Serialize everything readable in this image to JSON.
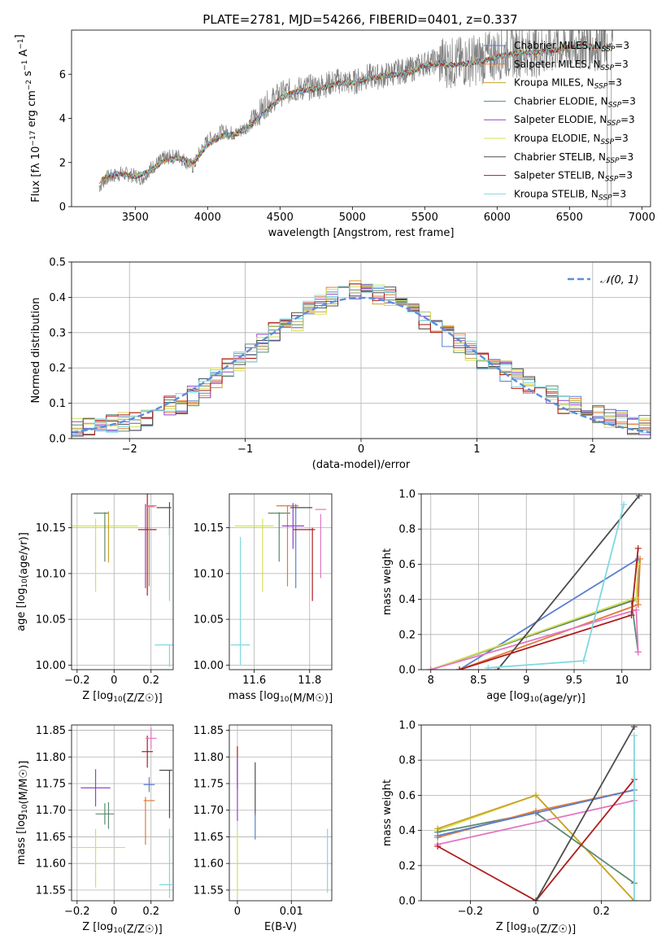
{
  "figure_title": "PLATE=2781, MJD=54266, FIBERID=0401, z=0.337",
  "chart_data": [
    {
      "id": "spectrum",
      "type": "line",
      "xlabel": "wavelength [Angstrom, rest frame]",
      "ylabel": "Flux [f_λ 10^-17 erg cm^-2 s^-1 A^-1]",
      "xlim": [
        3060,
        7060
      ],
      "ylim": [
        0,
        8
      ],
      "xticks": [
        3500,
        4000,
        4500,
        5000,
        5500,
        6000,
        6500,
        7000
      ],
      "yticks": [
        0,
        2,
        4,
        6
      ],
      "legend_position": "top-right",
      "observed_color": "#808080",
      "observed": {
        "x": [
          3250,
          3300,
          3400,
          3500,
          3550,
          3600,
          3700,
          3800,
          3900,
          3950,
          4000,
          4100,
          4200,
          4300,
          4400,
          4500,
          4600,
          4700,
          4800,
          4900,
          5000,
          5100,
          5200,
          5300,
          5400,
          5500,
          5600,
          5700,
          5800,
          5900,
          6000,
          6100,
          6200,
          6300,
          6400,
          6500,
          6600,
          6700,
          6800
        ],
        "y": [
          0.9,
          1.3,
          1.5,
          1.4,
          1.3,
          1.7,
          2.2,
          2.3,
          1.8,
          2.5,
          3.0,
          3.4,
          3.3,
          3.8,
          4.6,
          5.1,
          5.3,
          5.4,
          5.5,
          5.7,
          5.6,
          5.9,
          5.9,
          6.1,
          6.2,
          6.5,
          6.6,
          6.5,
          6.6,
          6.7,
          6.9,
          7.0,
          7.1,
          7.0,
          7.2,
          7.3,
          7.4,
          7.3,
          7.4
        ]
      },
      "model": {
        "x": [
          3250,
          3300,
          3400,
          3500,
          3600,
          3700,
          3800,
          3900,
          4000,
          4100,
          4200,
          4300,
          4400,
          4500,
          4600,
          4700,
          4800,
          4900,
          5000,
          5100,
          5200,
          5300,
          5400,
          5500,
          5600,
          5700,
          5800,
          5900,
          6000,
          6100,
          6200,
          6300,
          6400,
          6500,
          6600,
          6700,
          6800
        ],
        "y": [
          1.1,
          1.4,
          1.5,
          1.35,
          1.6,
          2.1,
          2.2,
          2.0,
          2.8,
          3.2,
          3.3,
          3.7,
          4.3,
          4.9,
          5.2,
          5.3,
          5.4,
          5.6,
          5.6,
          5.8,
          5.9,
          6.0,
          6.1,
          6.4,
          6.5,
          6.4,
          6.5,
          6.6,
          6.8,
          6.9,
          7.0,
          7.0,
          7.1,
          7.2,
          7.3,
          7.2,
          7.3
        ]
      },
      "series": [
        {
          "name": "Chabrier MILES, N_SSP=3",
          "color": "#5b7fcf"
        },
        {
          "name": "Salpeter MILES, N_SSP=3",
          "color": "#e07b39"
        },
        {
          "name": "Kroupa MILES, N_SSP=3",
          "color": "#c9a227"
        },
        {
          "name": "Chabrier ELODIE, N_SSP=3",
          "color": "#5c8a6e"
        },
        {
          "name": "Salpeter ELODIE, N_SSP=3",
          "color": "#8e44c9"
        },
        {
          "name": "Kroupa ELODIE, N_SSP=3",
          "color": "#d4e157"
        },
        {
          "name": "Chabrier STELIB, N_SSP=3",
          "color": "#4d4d4d"
        },
        {
          "name": "Salpeter STELIB, N_SSP=3",
          "color": "#b01c1c"
        },
        {
          "name": "Kroupa STELIB, N_SSP=3",
          "color": "#80d8e0"
        }
      ]
    },
    {
      "id": "residuals",
      "type": "histogram",
      "xlabel": "(data-model)/error",
      "ylabel": "Normed distribution",
      "xlim": [
        -2.5,
        2.5
      ],
      "ylim": [
        0,
        0.5
      ],
      "xticks": [
        -2,
        -1,
        0,
        1,
        2
      ],
      "yticks": [
        0.0,
        0.1,
        0.2,
        0.3,
        0.4,
        0.5
      ],
      "grid": true,
      "legend_position": "top-right",
      "reference": {
        "name": "𝒩(0, 1)",
        "color": "#5b8fd9"
      },
      "bin_edges": [
        -2.5,
        -2.4,
        -2.3,
        -2.2,
        -2.1,
        -2.0,
        -1.9,
        -1.8,
        -1.7,
        -1.6,
        -1.5,
        -1.4,
        -1.3,
        -1.2,
        -1.1,
        -1.0,
        -0.9,
        -0.8,
        -0.7,
        -0.6,
        -0.5,
        -0.4,
        -0.3,
        -0.2,
        -0.1,
        0.0,
        0.1,
        0.2,
        0.3,
        0.4,
        0.5,
        0.6,
        0.7,
        0.8,
        0.9,
        1.0,
        1.1,
        1.2,
        1.3,
        1.4,
        1.5,
        1.6,
        1.7,
        1.8,
        1.9,
        2.0,
        2.1,
        2.2,
        2.3,
        2.4,
        2.5
      ],
      "base_density": [
        0.03,
        0.03,
        0.04,
        0.04,
        0.05,
        0.05,
        0.06,
        0.08,
        0.09,
        0.1,
        0.12,
        0.14,
        0.17,
        0.2,
        0.22,
        0.24,
        0.27,
        0.3,
        0.31,
        0.33,
        0.36,
        0.38,
        0.4,
        0.41,
        0.42,
        0.42,
        0.41,
        0.4,
        0.39,
        0.37,
        0.34,
        0.32,
        0.29,
        0.27,
        0.25,
        0.22,
        0.2,
        0.19,
        0.17,
        0.15,
        0.13,
        0.12,
        0.1,
        0.09,
        0.08,
        0.07,
        0.06,
        0.05,
        0.04,
        0.04
      ]
    },
    {
      "id": "age-vs-Z",
      "type": "errorbar",
      "xlabel": "Z [log10(Z/Z☉)]",
      "ylabel": "age [log10(age/yr)]",
      "xlim": [
        -0.23,
        0.32
      ],
      "ylim": [
        9.995,
        10.187
      ],
      "xticks": [
        -0.2,
        0.0,
        0.2
      ],
      "yticks": [
        10.0,
        10.05,
        10.1,
        10.15
      ],
      "grid": true,
      "points": [
        {
          "x": -0.05,
          "y": 10.152,
          "xerr": 0.18,
          "yerr": 0.0,
          "color": "#d4e157"
        },
        {
          "x": -0.1,
          "y": 10.12,
          "xerr": 0.0,
          "yerr": 0.04,
          "color": "#d4e157"
        },
        {
          "x": -0.07,
          "y": 10.166,
          "xerr": 0.04,
          "yerr": 0.0,
          "color": "#5c8a6e"
        },
        {
          "x": -0.05,
          "y": 10.14,
          "xerr": 0.0,
          "yerr": 0.027,
          "color": "#5c8a6e"
        },
        {
          "x": -0.03,
          "y": 10.14,
          "xerr": 0.0,
          "yerr": 0.028,
          "color": "#c9a227"
        },
        {
          "x": 0.18,
          "y": 10.148,
          "xerr": 0.05,
          "yerr": 0.072,
          "color": "#b01c1c"
        },
        {
          "x": 0.17,
          "y": 10.13,
          "xerr": 0.0,
          "yerr": 0.046,
          "color": "#8e44c9"
        },
        {
          "x": 0.2,
          "y": 10.174,
          "xerr": 0.03,
          "yerr": 0.0,
          "color": "#e07b39"
        },
        {
          "x": 0.19,
          "y": 10.13,
          "xerr": 0.0,
          "yerr": 0.044,
          "color": "#e07b39"
        },
        {
          "x": 0.2,
          "y": 10.173,
          "xerr": 0.02,
          "yerr": 0.0,
          "color": "#e377c2"
        },
        {
          "x": 0.27,
          "y": 10.172,
          "xerr": 0.04,
          "yerr": 0.0,
          "color": "#4d4d4d"
        },
        {
          "x": 0.3,
          "y": 10.16,
          "xerr": 0.0,
          "yerr": 0.018,
          "color": "#4d4d4d"
        },
        {
          "x": 0.27,
          "y": 10.022,
          "xerr": 0.05,
          "yerr": 0.0,
          "color": "#80d8e0"
        },
        {
          "x": 0.3,
          "y": 10.11,
          "xerr": 0.0,
          "yerr": 0.04,
          "color": "#80d8e0"
        },
        {
          "x": 0.3,
          "y": 10.01,
          "xerr": 0.0,
          "yerr": 0.012,
          "color": "#80d8e0"
        }
      ]
    },
    {
      "id": "age-vs-mass",
      "type": "errorbar",
      "xlabel": "mass [log10(M/M☉)]",
      "ylabel": "",
      "xlim": [
        11.51,
        11.88
      ],
      "ylim": [
        9.995,
        10.187
      ],
      "xticks": [
        11.6,
        11.8
      ],
      "yticks": [
        10.0,
        10.05,
        10.1,
        10.15
      ],
      "grid": true,
      "points": [
        {
          "x": 11.6,
          "y": 10.152,
          "xerr": 0.07,
          "yerr": 0.0,
          "color": "#d4e157"
        },
        {
          "x": 11.63,
          "y": 10.12,
          "xerr": 0.0,
          "yerr": 0.04,
          "color": "#d4e157"
        },
        {
          "x": 11.55,
          "y": 10.022,
          "xerr": 0.035,
          "yerr": 0.0,
          "color": "#80d8e0"
        },
        {
          "x": 11.55,
          "y": 10.07,
          "xerr": 0.0,
          "yerr": 0.07,
          "color": "#80d8e0"
        },
        {
          "x": 11.69,
          "y": 10.166,
          "xerr": 0.04,
          "yerr": 0.0,
          "color": "#5c8a6e"
        },
        {
          "x": 11.69,
          "y": 10.14,
          "xerr": 0.0,
          "yerr": 0.027,
          "color": "#5c8a6e"
        },
        {
          "x": 11.72,
          "y": 10.174,
          "xerr": 0.04,
          "yerr": 0.0,
          "color": "#e07b39"
        },
        {
          "x": 11.72,
          "y": 10.13,
          "xerr": 0.0,
          "yerr": 0.044,
          "color": "#e07b39"
        },
        {
          "x": 11.74,
          "y": 10.152,
          "xerr": 0.04,
          "yerr": 0.025,
          "color": "#8e44c9"
        },
        {
          "x": 11.75,
          "y": 10.13,
          "xerr": 0.0,
          "yerr": 0.046,
          "color": "#5b7fcf"
        },
        {
          "x": 11.77,
          "y": 10.172,
          "xerr": 0.04,
          "yerr": 0.0,
          "color": "#4d4d4d"
        },
        {
          "x": 11.78,
          "y": 10.148,
          "xerr": 0.04,
          "yerr": 0.0,
          "color": "#b01c1c"
        },
        {
          "x": 11.81,
          "y": 10.11,
          "xerr": 0.0,
          "yerr": 0.04,
          "color": "#b01c1c"
        },
        {
          "x": 11.84,
          "y": 10.17,
          "xerr": 0.02,
          "yerr": 0.0,
          "color": "#e377c2"
        },
        {
          "x": 11.84,
          "y": 10.13,
          "xerr": 0.0,
          "yerr": 0.035,
          "color": "#e377c2"
        }
      ]
    },
    {
      "id": "mass-weight-vs-age",
      "type": "line",
      "xlabel": "age [log10(age/yr)]",
      "ylabel": "mass weight",
      "xlim": [
        7.9,
        10.3
      ],
      "ylim": [
        0.0,
        1.0
      ],
      "xticks": [
        8.0,
        8.5,
        9.0,
        9.5,
        10.0
      ],
      "yticks": [
        0.0,
        0.2,
        0.4,
        0.6,
        0.8,
        1.0
      ],
      "grid": true,
      "series": [
        {
          "color": "#5b7fcf",
          "x": [
            8.3,
            10.17,
            10.17
          ],
          "y": [
            0.0,
            0.63,
            0.37
          ]
        },
        {
          "color": "#e07b39",
          "x": [
            8.3,
            10.17,
            10.19
          ],
          "y": [
            0.0,
            0.37,
            0.63
          ]
        },
        {
          "color": "#c9a227",
          "x": [
            8.0,
            10.15,
            10.17
          ],
          "y": [
            0.0,
            0.4,
            0.6
          ]
        },
        {
          "color": "#5c8a6e",
          "x": [
            8.0,
            10.1,
            10.17
          ],
          "y": [
            0.0,
            0.39,
            0.1
          ]
        },
        {
          "color": "#d4e157",
          "x": [
            8.0,
            10.15,
            10.17
          ],
          "y": [
            0.0,
            0.41,
            0.6
          ]
        },
        {
          "color": "#e377c2",
          "x": [
            8.0,
            10.15,
            10.17
          ],
          "y": [
            0.0,
            0.34,
            0.1
          ]
        },
        {
          "color": "#4d4d4d",
          "x": [
            8.7,
            10.18
          ],
          "y": [
            0.0,
            0.99
          ]
        },
        {
          "color": "#b01c1c",
          "x": [
            8.3,
            10.1,
            10.17
          ],
          "y": [
            0.0,
            0.31,
            0.69
          ]
        },
        {
          "color": "#80d8e0",
          "x": [
            8.6,
            9.6,
            10.02
          ],
          "y": [
            0.01,
            0.05,
            0.94
          ]
        }
      ]
    },
    {
      "id": "mass-vs-Z",
      "type": "errorbar",
      "xlabel": "Z [log10(Z/Z☉)]",
      "ylabel": "mass [log10(M/M☉)]",
      "xlim": [
        -0.23,
        0.32
      ],
      "ylim": [
        11.53,
        11.86
      ],
      "xticks": [
        -0.2,
        0.0,
        0.2
      ],
      "yticks": [
        11.55,
        11.6,
        11.65,
        11.7,
        11.75,
        11.8,
        11.85
      ],
      "grid": true,
      "points": [
        {
          "x": -0.1,
          "y": 11.742,
          "xerr": 0.08,
          "yerr": 0.035,
          "color": "#8e44c9"
        },
        {
          "x": -0.05,
          "y": 11.693,
          "xerr": 0.05,
          "yerr": 0.02,
          "color": "#5c8a6e"
        },
        {
          "x": -0.03,
          "y": 11.69,
          "xerr": 0.0,
          "yerr": 0.025,
          "color": "#5c8a6e"
        },
        {
          "x": -0.09,
          "y": 11.63,
          "xerr": 0.15,
          "yerr": 0.0,
          "color": "#d4e157"
        },
        {
          "x": -0.1,
          "y": 11.61,
          "xerr": 0.0,
          "yerr": 0.055,
          "color": "#d4e157"
        },
        {
          "x": 0.18,
          "y": 11.81,
          "xerr": 0.03,
          "yerr": 0.03,
          "color": "#b01c1c"
        },
        {
          "x": 0.2,
          "y": 11.835,
          "xerr": 0.03,
          "yerr": 0.02,
          "color": "#e377c2"
        },
        {
          "x": 0.19,
          "y": 11.748,
          "xerr": 0.03,
          "yerr": 0.014,
          "color": "#5b7fcf"
        },
        {
          "x": 0.19,
          "y": 11.718,
          "xerr": 0.03,
          "yerr": 0.0,
          "color": "#e07b39"
        },
        {
          "x": 0.17,
          "y": 11.68,
          "xerr": 0.0,
          "yerr": 0.045,
          "color": "#e07b39"
        },
        {
          "x": 0.28,
          "y": 11.775,
          "xerr": 0.035,
          "yerr": 0.0,
          "color": "#4d4d4d"
        },
        {
          "x": 0.3,
          "y": 11.73,
          "xerr": 0.0,
          "yerr": 0.045,
          "color": "#4d4d4d"
        },
        {
          "x": 0.28,
          "y": 11.56,
          "xerr": 0.035,
          "yerr": 0.0,
          "color": "#80d8e0"
        },
        {
          "x": 0.3,
          "y": 11.6,
          "xerr": 0.0,
          "yerr": 0.065,
          "color": "#80d8e0"
        }
      ]
    },
    {
      "id": "mass-vs-EBV",
      "type": "errorbar",
      "xlabel": "E(B-V)",
      "ylabel": "",
      "xlim": [
        -0.0015,
        0.0175
      ],
      "ylim": [
        11.53,
        11.86
      ],
      "xticks": [
        0.0,
        0.01
      ],
      "yticks": [
        11.55,
        11.6,
        11.65,
        11.7,
        11.75,
        11.8,
        11.85
      ],
      "grid": true,
      "points": [
        {
          "x": 0.0,
          "y": 11.78,
          "xerr": 0.0,
          "yerr": 0.04,
          "color": "#b01c1c"
        },
        {
          "x": 0.0,
          "y": 11.74,
          "xerr": 0.0,
          "yerr": 0.06,
          "color": "#8e44c9"
        },
        {
          "x": 0.0,
          "y": 11.6,
          "xerr": 0.0,
          "yerr": 0.06,
          "color": "#d4e157"
        },
        {
          "x": 0.0033,
          "y": 11.74,
          "xerr": 0.0,
          "yerr": 0.05,
          "color": "#4d4d4d"
        },
        {
          "x": 0.0033,
          "y": 11.67,
          "xerr": 0.0,
          "yerr": 0.025,
          "color": "#5b7fcf"
        },
        {
          "x": 0.0167,
          "y": 11.605,
          "xerr": 0.0,
          "yerr": 0.06,
          "color": "#80d8e0"
        }
      ]
    },
    {
      "id": "mass-weight-vs-Z",
      "type": "line",
      "xlabel": "Z [log10(Z/Z☉)]",
      "ylabel": "mass weight",
      "xlim": [
        -0.35,
        0.35
      ],
      "ylim": [
        0.0,
        1.0
      ],
      "xticks": [
        -0.2,
        0.0,
        0.2
      ],
      "yticks": [
        0.0,
        0.2,
        0.4,
        0.6,
        0.8,
        1.0
      ],
      "grid": true,
      "series": [
        {
          "color": "#d4e157",
          "x": [
            -0.3,
            0.0,
            0.3
          ],
          "y": [
            0.4,
            0.6,
            0.0
          ]
        },
        {
          "color": "#c9a227",
          "x": [
            -0.3,
            0.0,
            0.3
          ],
          "y": [
            0.41,
            0.6,
            0.0
          ]
        },
        {
          "color": "#5c8a6e",
          "x": [
            -0.3,
            0.0,
            0.3
          ],
          "y": [
            0.39,
            0.5,
            0.1
          ]
        },
        {
          "color": "#e07b39",
          "x": [
            -0.3,
            0.0,
            0.3
          ],
          "y": [
            0.36,
            0.51,
            0.63
          ]
        },
        {
          "color": "#5b7fcf",
          "x": [
            -0.3,
            0.0,
            0.3
          ],
          "y": [
            0.37,
            0.5,
            0.63
          ]
        },
        {
          "color": "#e377c2",
          "x": [
            -0.3,
            0.3
          ],
          "y": [
            0.32,
            0.57
          ]
        },
        {
          "color": "#b01c1c",
          "x": [
            -0.3,
            0.0,
            0.3
          ],
          "y": [
            0.31,
            0.0,
            0.69
          ]
        },
        {
          "color": "#4d4d4d",
          "x": [
            0.0,
            0.3
          ],
          "y": [
            0.0,
            0.99
          ]
        },
        {
          "color": "#80d8e0",
          "x": [
            0.3,
            0.3
          ],
          "y": [
            0.0,
            0.94
          ]
        }
      ]
    }
  ]
}
